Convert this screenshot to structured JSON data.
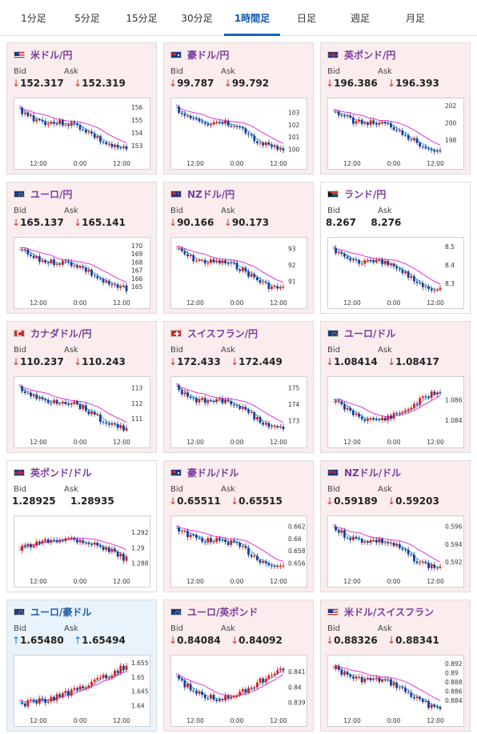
{
  "tabs": [
    {
      "label": "1分足",
      "active": false
    },
    {
      "label": "5分足",
      "active": false
    },
    {
      "label": "15分足",
      "active": false
    },
    {
      "label": "30分足",
      "active": false
    },
    {
      "label": "1時間足",
      "active": true
    },
    {
      "label": "日足",
      "active": false
    },
    {
      "label": "週足",
      "active": false
    },
    {
      "label": "月足",
      "active": false
    }
  ],
  "labels": {
    "bid": "Bid",
    "ask": "Ask"
  },
  "x_ticks": [
    "12:00",
    "0:00",
    "12:00"
  ],
  "colors": {
    "up_candle": "#d62020",
    "down_candle": "#1a3d9c",
    "ma_short": "#35b2c8",
    "ma_long": "#dd33dd",
    "down_arrow": "#d93030",
    "up_arrow": "#1f7ab8"
  },
  "cards": [
    {
      "pair": "米ドル/円",
      "flag": "us-flag",
      "dir": "down",
      "bid": "152.317",
      "ask": "152.319",
      "ticks": [
        "156",
        "155",
        "154",
        "153"
      ],
      "tick_pos": [
        0.08,
        0.33,
        0.58,
        0.83
      ],
      "shape": "slide"
    },
    {
      "pair": "豪ドル/円",
      "flag": "au-flag",
      "dir": "down",
      "bid": "99.787",
      "ask": "99.792",
      "ticks": [
        "103",
        "102",
        "101",
        "100"
      ],
      "tick_pos": [
        0.18,
        0.42,
        0.66,
        0.9
      ],
      "shape": "slide"
    },
    {
      "pair": "英ポンド/円",
      "flag": "gb-flag",
      "dir": "down",
      "bid": "196.386",
      "ask": "196.393",
      "ticks": [
        "202",
        "200",
        "198"
      ],
      "tick_pos": [
        0.05,
        0.38,
        0.72
      ],
      "shape": "slide"
    },
    {
      "pair": "ユーロ/円",
      "flag": "eu-flag",
      "dir": "down",
      "bid": "165.137",
      "ask": "165.141",
      "ticks": [
        "170",
        "169",
        "168",
        "167",
        "166",
        "165"
      ],
      "tick_pos": [
        0.06,
        0.22,
        0.38,
        0.54,
        0.7,
        0.86
      ],
      "shape": "slide"
    },
    {
      "pair": "NZドル/円",
      "flag": "nz-flag",
      "dir": "down",
      "bid": "90.166",
      "ask": "90.173",
      "ticks": [
        "93",
        "92",
        "91"
      ],
      "tick_pos": [
        0.12,
        0.44,
        0.76
      ],
      "shape": "slide"
    },
    {
      "pair": "ランド/円",
      "flag": "za-flag",
      "dir": "flat",
      "bid": "8.267",
      "ask": "8.276",
      "ticks": [
        "8.5",
        "8.4",
        "8.3"
      ],
      "tick_pos": [
        0.08,
        0.44,
        0.8
      ],
      "shape": "slide"
    },
    {
      "pair": "カナダドル/円",
      "flag": "ca-flag",
      "dir": "down",
      "bid": "110.237",
      "ask": "110.243",
      "ticks": [
        "113",
        "112",
        "111"
      ],
      "tick_pos": [
        0.12,
        0.42,
        0.72
      ],
      "shape": "slide"
    },
    {
      "pair": "スイスフラン/円",
      "flag": "ch-flag",
      "dir": "down",
      "bid": "172.433",
      "ask": "172.449",
      "ticks": [
        "175",
        "174",
        "173"
      ],
      "tick_pos": [
        0.12,
        0.44,
        0.76
      ],
      "shape": "slide"
    },
    {
      "pair": "ユーロ/ドル",
      "flag": "eu-flag",
      "dir": "down",
      "bid": "1.08414",
      "ask": "1.08417",
      "ticks": [
        "1.086",
        "1.084"
      ],
      "tick_pos": [
        0.35,
        0.75
      ],
      "shape": "dip"
    },
    {
      "pair": "英ポンド/ドル",
      "flag": "gb-flag",
      "dir": "flat",
      "bid": "1.28925",
      "ask": "1.28935",
      "ticks": [
        "1.292",
        "1.29",
        "1.288"
      ],
      "tick_pos": [
        0.22,
        0.52,
        0.82
      ],
      "shape": "hump"
    },
    {
      "pair": "豪ドル/ドル",
      "flag": "au-flag",
      "dir": "down",
      "bid": "0.65511",
      "ask": "0.65515",
      "ticks": [
        "0.662",
        "0.66",
        "0.658",
        "0.656"
      ],
      "tick_pos": [
        0.1,
        0.34,
        0.58,
        0.82
      ],
      "shape": "slide"
    },
    {
      "pair": "NZドル/ドル",
      "flag": "nz-flag",
      "dir": "down",
      "bid": "0.59189",
      "ask": "0.59203",
      "ticks": [
        "0.596",
        "0.594",
        "0.592"
      ],
      "tick_pos": [
        0.1,
        0.45,
        0.8
      ],
      "shape": "slide"
    },
    {
      "pair": "ユーロ/豪ドル",
      "flag": "eu-au-flag",
      "dir": "up",
      "bid": "1.65480",
      "ask": "1.65494",
      "ticks": [
        "1.655",
        "1.65",
        "1.645",
        "1.64"
      ],
      "tick_pos": [
        0.05,
        0.33,
        0.6,
        0.88
      ],
      "shape": "rise"
    },
    {
      "pair": "ユーロ/英ポンド",
      "flag": "eu-gb-flag",
      "dir": "down",
      "bid": "0.84084",
      "ask": "0.84092",
      "ticks": [
        "0.841",
        "0.84",
        "0.839"
      ],
      "tick_pos": [
        0.22,
        0.52,
        0.82
      ],
      "shape": "dip"
    },
    {
      "pair": "米ドル/スイスフラン",
      "flag": "us-ch-flag",
      "dir": "down",
      "bid": "0.88326",
      "ask": "0.88341",
      "ticks": [
        "0.892",
        "0.89",
        "0.888",
        "0.886",
        "0.884"
      ],
      "tick_pos": [
        0.06,
        0.24,
        0.42,
        0.6,
        0.78
      ],
      "shape": "slide"
    }
  ]
}
